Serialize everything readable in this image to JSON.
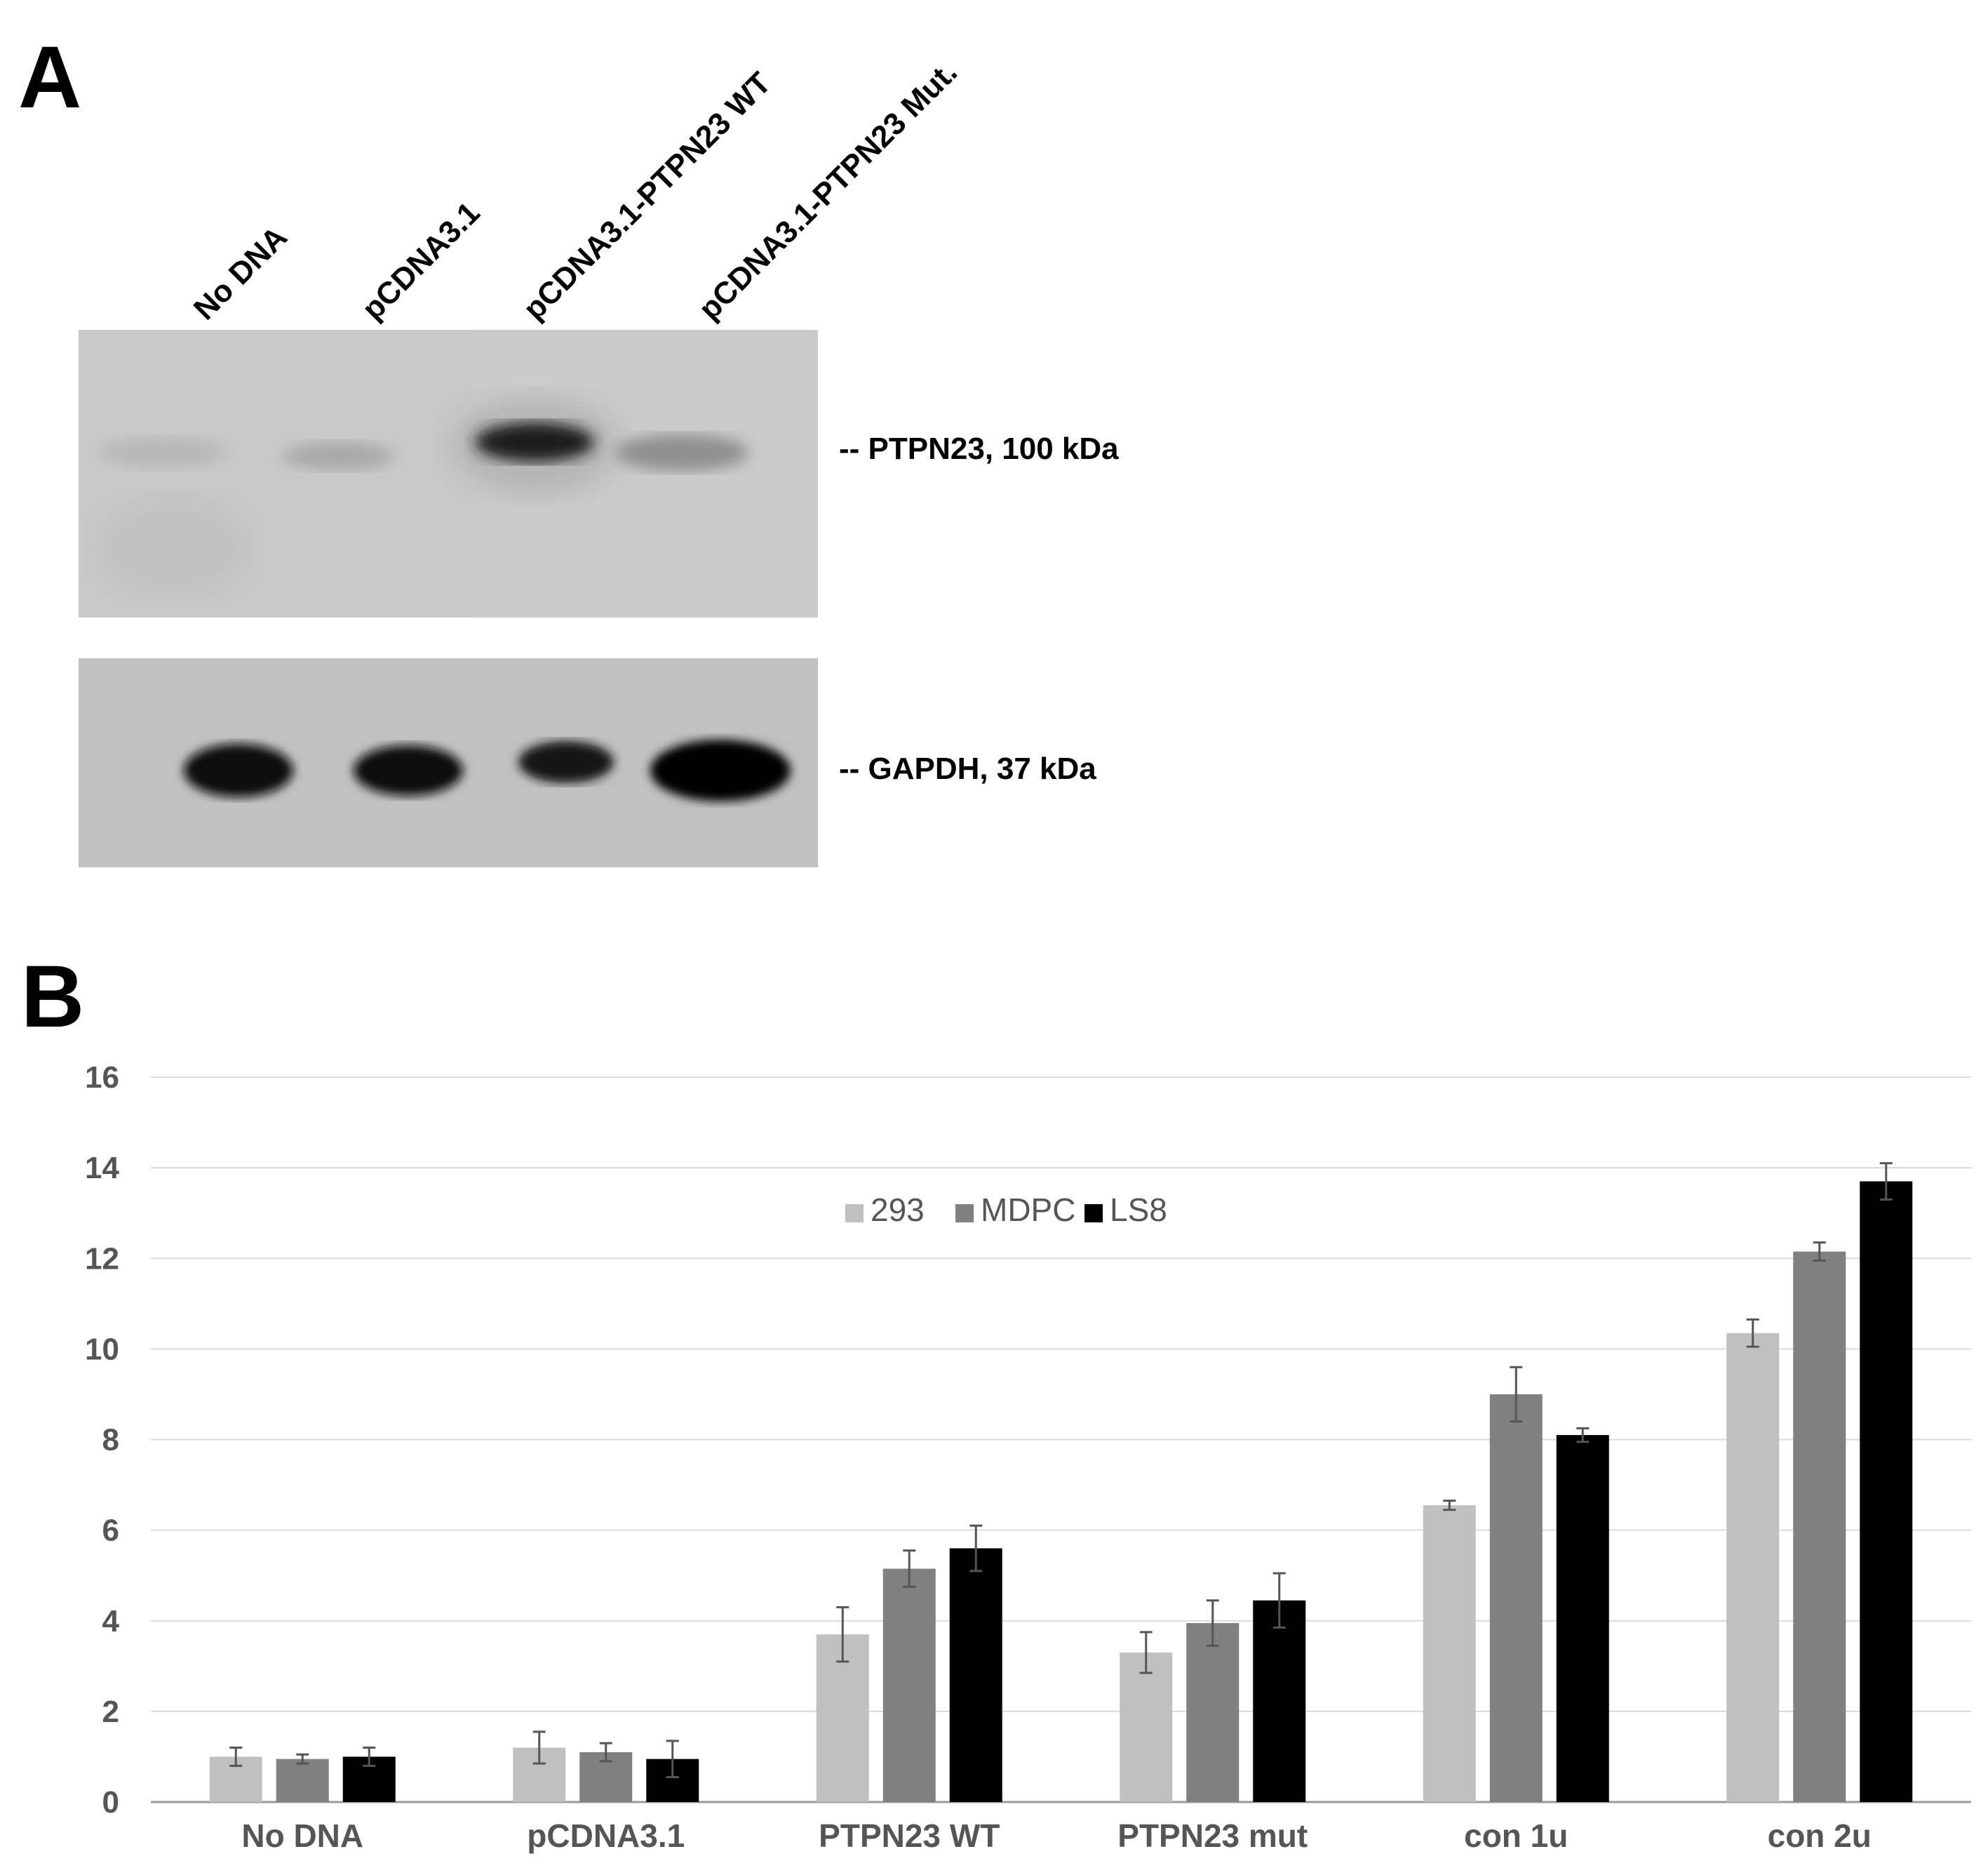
{
  "panel_a": {
    "letter": "A",
    "lanes": [
      "No DNA",
      "pCDNA3.1",
      "pCDNA3.1-PTPN23 WT",
      "pCDNA3.1-PTPN23 Mut."
    ],
    "bands": [
      "-- PTPN23, 100 kDa",
      "-- GAPDH, 37 kDa"
    ]
  },
  "panel_b": {
    "letter": "B"
  },
  "chart_data": {
    "type": "bar",
    "categories": [
      "No DNA",
      "pCDNA3.1",
      "PTPN23 WT",
      "PTPN23 mut",
      "con 1u",
      "con 2u"
    ],
    "series": [
      {
        "name": "293",
        "color": "#c0c0c0",
        "values": [
          1.0,
          1.2,
          3.7,
          3.3,
          6.55,
          10.35
        ],
        "errors": [
          0.2,
          0.35,
          0.6,
          0.45,
          0.1,
          0.3
        ]
      },
      {
        "name": "MDPC",
        "color": "#808080",
        "values": [
          0.95,
          1.1,
          5.15,
          3.95,
          9.0,
          12.15
        ],
        "errors": [
          0.1,
          0.2,
          0.4,
          0.5,
          0.6,
          0.2
        ]
      },
      {
        "name": "LS8",
        "color": "#000000",
        "values": [
          1.0,
          0.95,
          5.6,
          4.45,
          8.1,
          13.7
        ],
        "errors": [
          0.2,
          0.4,
          0.5,
          0.6,
          0.15,
          0.4
        ]
      }
    ],
    "ylim": [
      0,
      16
    ],
    "yticks": [
      "0",
      "2",
      "4",
      "6",
      "8",
      "10",
      "12",
      "14",
      "16"
    ],
    "grid": true,
    "legend": "top-center"
  }
}
